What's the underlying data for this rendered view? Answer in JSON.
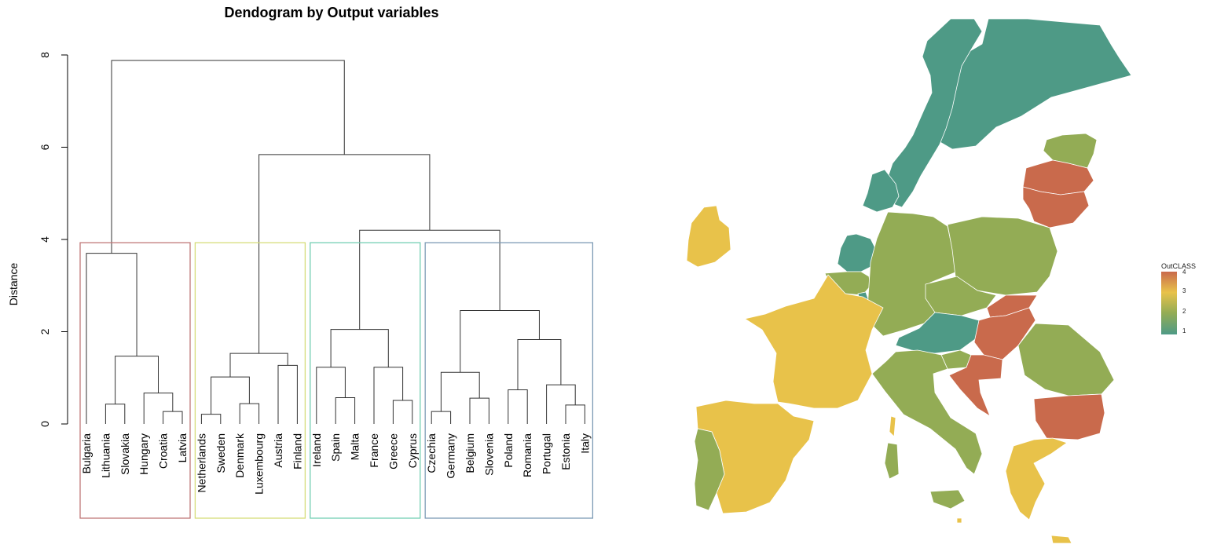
{
  "chart_data": [
    {
      "type": "dendrogram",
      "title": "Dendogram by Output variables",
      "ylabel": "Distance",
      "ylim": [
        0,
        8
      ],
      "yticks": [
        "0",
        "2",
        "4",
        "6",
        "8"
      ],
      "leaves": [
        "Bulgaria",
        "Lithuania",
        "Slovakia",
        "Hungary",
        "Croatia",
        "Latvia",
        "Netherlands",
        "Sweden",
        "Denmark",
        "Luxembourg",
        "Austria",
        "Finland",
        "Ireland",
        "Spain",
        "Malta",
        "France",
        "Greece",
        "Cyprus",
        "Czechia",
        "Germany",
        "Belgium",
        "Slovenia",
        "Poland",
        "Romania",
        "Portugal",
        "Estonia",
        "Italy"
      ],
      "merges": [
        {
          "a": "L4",
          "b": "L5",
          "height": 0.27
        },
        {
          "a": "L3",
          "b": "M0",
          "height": 0.67
        },
        {
          "a": "L1",
          "b": "L2",
          "height": 0.43
        },
        {
          "a": "M2",
          "b": "M1",
          "height": 1.47
        },
        {
          "a": "L0",
          "b": "M3",
          "height": 3.7
        },
        {
          "a": "L6",
          "b": "L7",
          "height": 0.21
        },
        {
          "a": "L8",
          "b": "L9",
          "height": 0.44
        },
        {
          "a": "M5",
          "b": "M6",
          "height": 1.02
        },
        {
          "a": "L10",
          "b": "L11",
          "height": 1.27
        },
        {
          "a": "M7",
          "b": "M8",
          "height": 1.53
        },
        {
          "a": "L13",
          "b": "L14",
          "height": 0.57
        },
        {
          "a": "L12",
          "b": "M10",
          "height": 1.23
        },
        {
          "a": "L16",
          "b": "L17",
          "height": 0.51
        },
        {
          "a": "L15",
          "b": "M12",
          "height": 1.23
        },
        {
          "a": "M11",
          "b": "M13",
          "height": 2.05
        },
        {
          "a": "L18",
          "b": "L19",
          "height": 0.27
        },
        {
          "a": "L20",
          "b": "L21",
          "height": 0.56
        },
        {
          "a": "M15",
          "b": "M16",
          "height": 1.12
        },
        {
          "a": "L22",
          "b": "L23",
          "height": 0.74
        },
        {
          "a": "L25",
          "b": "L26",
          "height": 0.41
        },
        {
          "a": "L24",
          "b": "M19",
          "height": 0.85
        },
        {
          "a": "M18",
          "b": "M20",
          "height": 1.83
        },
        {
          "a": "M17",
          "b": "M21",
          "height": 2.46
        },
        {
          "a": "M14",
          "b": "M22",
          "height": 4.2
        },
        {
          "a": "M9",
          "b": "M23",
          "height": 5.84
        },
        {
          "a": "M4",
          "b": "M24",
          "height": 7.88
        }
      ],
      "clusters": [
        {
          "from": 0,
          "to": 5,
          "color": "#c07878"
        },
        {
          "from": 6,
          "to": 11,
          "color": "#d6dd7a"
        },
        {
          "from": 12,
          "to": 17,
          "color": "#74cfb3"
        },
        {
          "from": 18,
          "to": 26,
          "color": "#7d9bb5"
        }
      ],
      "cluster_cut_height": 3.93
    },
    {
      "type": "choropleth",
      "legend_title": "OutCLASS",
      "legend_ticks": [
        "4",
        "3",
        "2",
        "1"
      ],
      "legend_placement": "right",
      "class_colors": {
        "1": "#4e9a86",
        "2": "#93ac55",
        "3": "#e8c24a",
        "4": "#c96a4c"
      },
      "regions": [
        {
          "country": "Finland",
          "class": 1
        },
        {
          "country": "Sweden",
          "class": 1
        },
        {
          "country": "Denmark",
          "class": 1
        },
        {
          "country": "Netherlands",
          "class": 1
        },
        {
          "country": "Austria",
          "class": 1
        },
        {
          "country": "Luxembourg",
          "class": 1
        },
        {
          "country": "Estonia",
          "class": 2
        },
        {
          "country": "Germany",
          "class": 2
        },
        {
          "country": "Poland",
          "class": 2
        },
        {
          "country": "Czechia",
          "class": 2
        },
        {
          "country": "Belgium",
          "class": 2
        },
        {
          "country": "Slovenia",
          "class": 2
        },
        {
          "country": "Romania",
          "class": 2
        },
        {
          "country": "Italy",
          "class": 2
        },
        {
          "country": "Portugal",
          "class": 2
        },
        {
          "country": "Ireland",
          "class": 3
        },
        {
          "country": "France",
          "class": 3
        },
        {
          "country": "Spain",
          "class": 3
        },
        {
          "country": "Greece",
          "class": 3
        },
        {
          "country": "Cyprus",
          "class": 3
        },
        {
          "country": "Malta",
          "class": 3
        },
        {
          "country": "Latvia",
          "class": 4
        },
        {
          "country": "Lithuania",
          "class": 4
        },
        {
          "country": "Slovakia",
          "class": 4
        },
        {
          "country": "Hungary",
          "class": 4
        },
        {
          "country": "Croatia",
          "class": 4
        },
        {
          "country": "Bulgaria",
          "class": 4
        }
      ]
    }
  ]
}
